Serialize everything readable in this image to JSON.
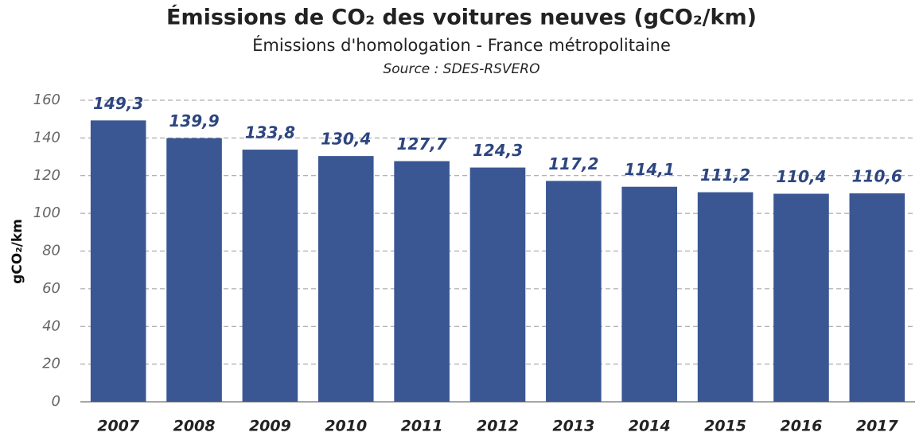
{
  "chart_data": {
    "type": "bar",
    "title": "Émissions de CO₂ des voitures neuves (gCO₂/km)",
    "subtitle": "Émissions d'homologation - France métropolitaine",
    "source": "Source : SDES-RSVERO",
    "y_label": "gCO₂/km",
    "categories": [
      "2007",
      "2008",
      "2009",
      "2010",
      "2011",
      "2012",
      "2013",
      "2014",
      "2015",
      "2016",
      "2017"
    ],
    "values": [
      149.3,
      139.9,
      133.8,
      130.4,
      127.7,
      124.3,
      117.2,
      114.1,
      111.2,
      110.4,
      110.6
    ],
    "value_labels": [
      "149,3",
      "139,9",
      "133,8",
      "130,4",
      "127,7",
      "124,3",
      "117,2",
      "114,1",
      "111,2",
      "110,4",
      "110,6"
    ],
    "color": "#3a5794",
    "ylim": [
      0,
      160
    ],
    "yticks": [
      0,
      20,
      40,
      60,
      80,
      100,
      120,
      140,
      160
    ],
    "grid": true
  }
}
